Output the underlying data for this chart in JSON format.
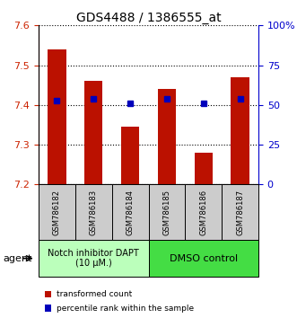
{
  "title": "GDS4488 / 1386555_at",
  "samples": [
    "GSM786182",
    "GSM786183",
    "GSM786184",
    "GSM786185",
    "GSM786186",
    "GSM786187"
  ],
  "bar_values": [
    7.54,
    7.46,
    7.345,
    7.44,
    7.28,
    7.47
  ],
  "bar_bottom": 7.2,
  "pct_y_values": [
    7.41,
    7.415,
    7.405,
    7.415,
    7.405,
    7.415
  ],
  "bar_color": "#bb1100",
  "percentile_color": "#0000bb",
  "ylim_left": [
    7.2,
    7.6
  ],
  "ylim_right": [
    0,
    100
  ],
  "yticks_left": [
    7.2,
    7.3,
    7.4,
    7.5,
    7.6
  ],
  "yticks_right": [
    0,
    25,
    50,
    75,
    100
  ],
  "ytick_labels_right": [
    "0",
    "25",
    "50",
    "75",
    "100%"
  ],
  "group1_label": "Notch inhibitor DAPT\n(10 μM.)",
  "group2_label": "DMSO control",
  "group1_color": "#bbffbb",
  "group2_color": "#44dd44",
  "group1_indices": [
    0,
    1,
    2
  ],
  "group2_indices": [
    3,
    4,
    5
  ],
  "legend_bar_label": "transformed count",
  "legend_pct_label": "percentile rank within the sample",
  "agent_label": "agent",
  "tick_color_left": "#cc2200",
  "tick_color_right": "#0000cc",
  "bar_width": 0.5,
  "sample_box_color": "#cccccc",
  "figsize": [
    3.31,
    3.54
  ],
  "dpi": 100
}
